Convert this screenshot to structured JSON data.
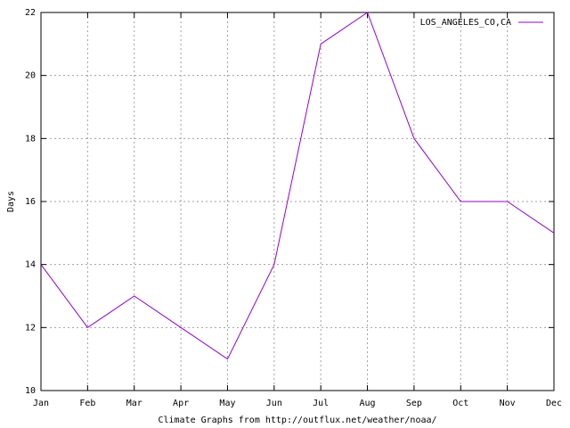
{
  "chart_data": {
    "type": "line",
    "x_label": "Climate Graphs from http://outflux.net/weather/noaa/",
    "y_label": "Days",
    "categories": [
      "Jan",
      "Feb",
      "Mar",
      "Apr",
      "May",
      "Jun",
      "Jul",
      "Aug",
      "Sep",
      "Oct",
      "Nov",
      "Dec"
    ],
    "series": [
      {
        "name": "LOS_ANGELES_CO,CA",
        "color": "#9400d3",
        "values": [
          14,
          12,
          13,
          12,
          11,
          14,
          21,
          22,
          18,
          16,
          16,
          15
        ]
      }
    ],
    "ylim": [
      10,
      22
    ],
    "yticks": [
      10,
      12,
      14,
      16,
      18,
      20,
      22
    ],
    "grid": true,
    "legend": "top-right"
  }
}
